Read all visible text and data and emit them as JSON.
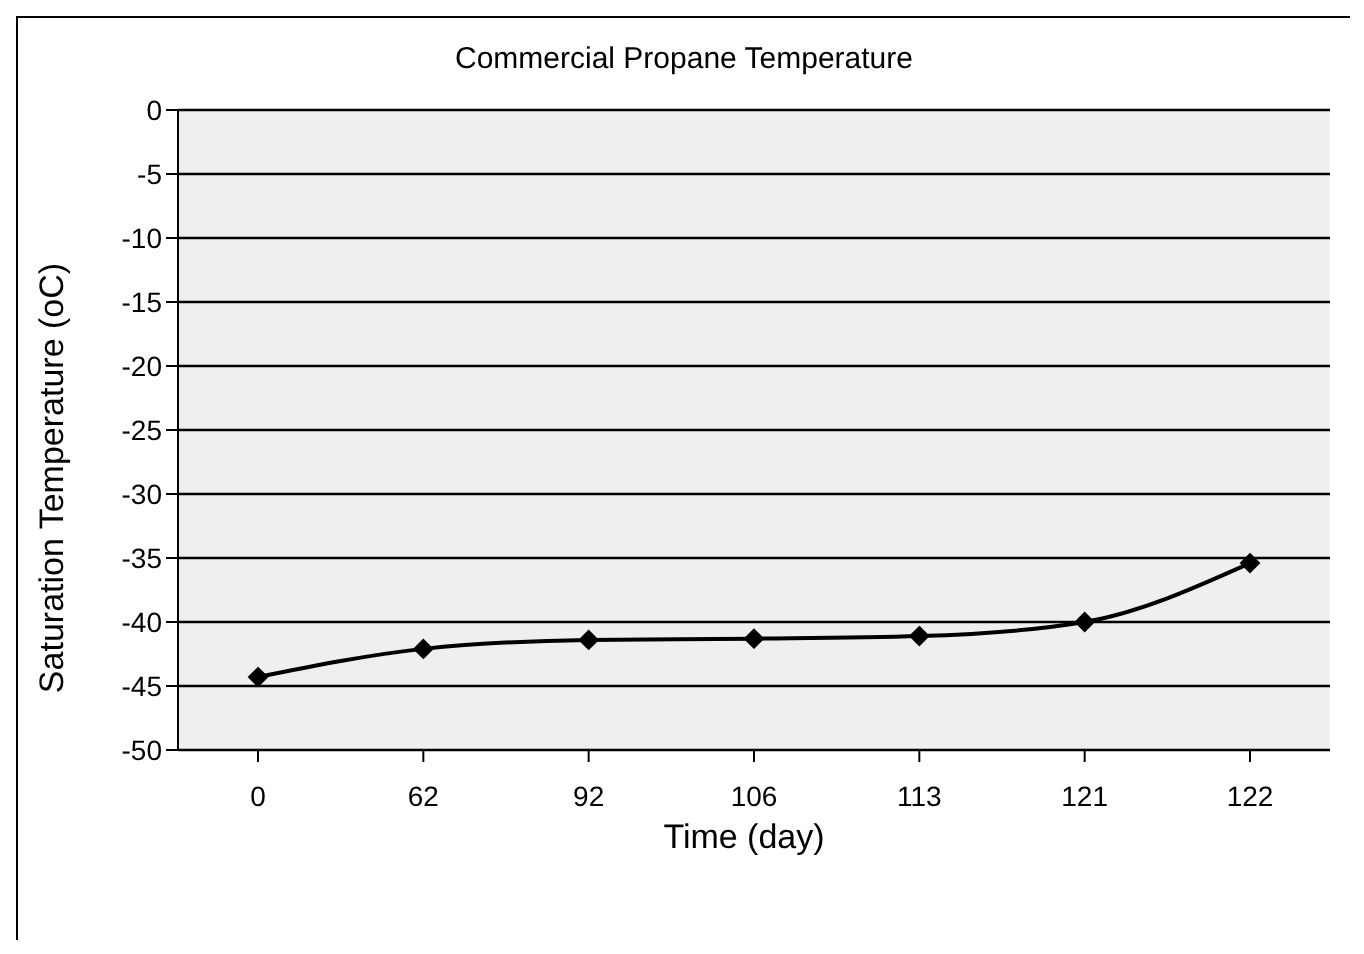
{
  "chart_data": {
    "type": "line",
    "title": "Commercial Propane Temperature",
    "xlabel": "Time (day)",
    "ylabel": "Saturation Temperature (oC)",
    "categories": [
      "0",
      "62",
      "92",
      "106",
      "113",
      "121",
      "122"
    ],
    "series": [
      {
        "color": "#000000",
        "values": [
          -44.3,
          -42.1,
          -41.4,
          -41.3,
          -41.1,
          -40,
          -35.4
        ]
      }
    ],
    "ylim": [
      -50,
      0
    ],
    "yticks": [
      -50,
      -45,
      -40,
      -35,
      -30,
      -25,
      -20,
      -15,
      -10,
      -5,
      0
    ],
    "grid": "y",
    "marker": "diamond",
    "line_style": "solid"
  }
}
